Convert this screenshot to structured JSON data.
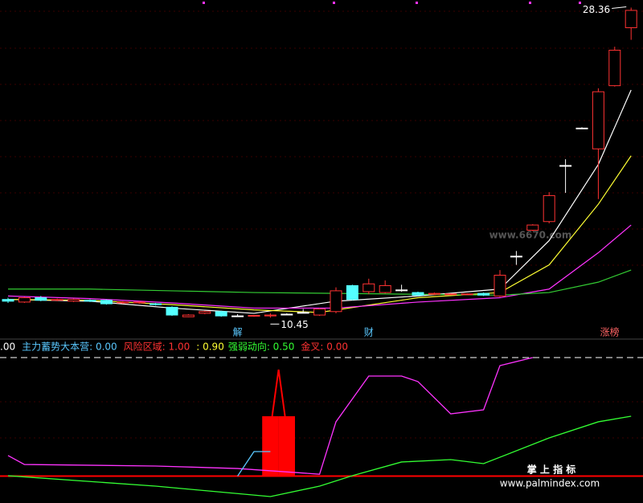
{
  "chart_data": {
    "type": "candlestick",
    "open": [
      11.5,
      11.35,
      11.6,
      11.45,
      11.4,
      11.45,
      11.45,
      11.3,
      11.3,
      11.25,
      11.05,
      10.5,
      10.7,
      10.8,
      10.55,
      10.55,
      10.55,
      10.65,
      10.75,
      10.6,
      10.8,
      12.3,
      11.95,
      11.9,
      12.05,
      11.9,
      11.8,
      11.8,
      11.8,
      11.85,
      11.7,
      14.0,
      15.5,
      16.0,
      19.24,
      21.4,
      20.2,
      23.85,
      27.2
    ],
    "close": [
      11.4,
      11.6,
      11.45,
      11.5,
      11.5,
      11.4,
      11.25,
      11.35,
      11.35,
      11.2,
      10.6,
      10.6,
      10.8,
      10.55,
      10.55,
      10.58,
      10.6,
      10.65,
      10.75,
      10.95,
      12.0,
      11.5,
      12.4,
      12.3,
      12.05,
      11.75,
      11.85,
      11.82,
      11.82,
      11.75,
      12.9,
      14.0,
      15.8,
      17.5,
      19.24,
      21.4,
      23.5,
      25.9,
      28.2
    ],
    "high": [
      11.6,
      11.65,
      11.7,
      11.55,
      11.55,
      11.5,
      11.5,
      11.4,
      11.4,
      11.3,
      11.1,
      10.65,
      10.85,
      10.85,
      10.65,
      10.6,
      10.7,
      10.7,
      10.95,
      11.0,
      12.2,
      12.35,
      12.7,
      12.6,
      12.35,
      11.95,
      11.9,
      11.85,
      11.85,
      11.9,
      13.2,
      14.3,
      15.85,
      17.7,
      19.6,
      21.45,
      23.7,
      26.1,
      28.36
    ],
    "low": [
      11.3,
      11.3,
      11.4,
      11.4,
      11.35,
      11.35,
      11.2,
      11.25,
      11.25,
      11.15,
      10.55,
      10.48,
      10.65,
      10.5,
      10.5,
      10.5,
      10.45,
      10.6,
      10.7,
      10.55,
      10.7,
      11.45,
      11.8,
      11.85,
      11.95,
      11.7,
      11.75,
      11.75,
      11.75,
      11.7,
      11.65,
      13.5,
      15.45,
      15.9,
      17.66,
      21.35,
      17.3,
      23.8,
      26.5
    ],
    "up_color": "#ff3232",
    "down_color": "#54ffff",
    "flat_color": "#ffffff",
    "ylim": [
      10.0,
      28.8
    ],
    "price_lines": [
      {
        "color": "#ffffff",
        "x": [
          0,
          5,
          10,
          15,
          20,
          25,
          30,
          33,
          36,
          38
        ],
        "values": [
          11.5,
          11.4,
          11.0,
          10.7,
          11.4,
          11.7,
          12.1,
          14.9,
          19.3,
          23.6
        ]
      },
      {
        "color": "#ffff33",
        "x": [
          0,
          5,
          10,
          15,
          19,
          25,
          30,
          33,
          36,
          38
        ],
        "values": [
          11.5,
          11.45,
          11.2,
          10.9,
          10.75,
          11.6,
          11.9,
          13.5,
          17.0,
          19.8
        ]
      },
      {
        "color": "#ff33ff",
        "x": [
          0,
          5,
          10,
          15,
          20,
          25,
          30,
          33,
          36,
          38
        ],
        "values": [
          11.7,
          11.55,
          11.3,
          11.0,
          11.0,
          11.35,
          11.6,
          12.1,
          14.2,
          15.8
        ]
      },
      {
        "color": "#33cc33",
        "x": [
          0,
          5,
          10,
          15,
          20,
          25,
          30,
          33,
          36,
          38
        ],
        "values": [
          12.1,
          12.1,
          12.0,
          11.9,
          11.85,
          11.8,
          11.75,
          11.9,
          12.5,
          13.2
        ]
      }
    ],
    "high_label": {
      "x": 38,
      "value": 28.36,
      "label": "28.36"
    },
    "low_label": {
      "x": 16,
      "value": 10.45,
      "label": "10.45"
    },
    "markers": [
      {
        "x": 14,
        "label": "解",
        "color": "#5ac8ff"
      },
      {
        "x": 22,
        "label": "财",
        "color": "#5ac8ff"
      },
      {
        "x": 36.7,
        "label": "涨榜",
        "color": "#ff6464"
      }
    ],
    "watermark": "www.6670.com",
    "indicator": {
      "legend": [
        {
          "text": ".00",
          "color": "#ffffff"
        },
        {
          "text": "主力蓄势大本营: 0.00",
          "color": "#5ac8ff"
        },
        {
          "text": "风险区域: 1.00",
          "color": "#ff3232"
        },
        {
          "text": ": 0.90",
          "color": "#ffff33"
        },
        {
          "text": "强弱动向: 0.50",
          "color": "#33ff33"
        },
        {
          "text": "金叉: 0.00",
          "color": "#ff3232"
        }
      ],
      "ylim": [
        -20,
        100
      ],
      "levels": [
        {
          "value": 0,
          "color": "#ff0000"
        },
        {
          "value": 100,
          "color": "#ffffff"
        }
      ],
      "lines": [
        {
          "color": "#ff33ff",
          "x": [
            0,
            1,
            9,
            14,
            19,
            20,
            22,
            24,
            25,
            27,
            29,
            30,
            32
          ],
          "values": [
            17.3,
            9.8,
            8.5,
            6.4,
            1.6,
            45.8,
            84.4,
            84.4,
            79.7,
            52.5,
            55.9,
            93.2,
            100
          ]
        },
        {
          "color": "#33ff33",
          "x": [
            0,
            9,
            16,
            19,
            21,
            24,
            27,
            29,
            33,
            36,
            38
          ],
          "values": [
            0.3,
            -8.5,
            -17.3,
            -8.5,
            0.3,
            11.9,
            13.9,
            10.5,
            32.2,
            45.8,
            50.5
          ]
        },
        {
          "color": "#5ac8ff",
          "x": [
            14,
            15,
            16
          ],
          "values": [
            0,
            20.7,
            20.7
          ]
        }
      ],
      "bars": {
        "color": "#ff0000",
        "x": [
          16,
          17
        ],
        "values": [
          50.5,
          50.5
        ]
      },
      "spike": {
        "x": 16.5,
        "value": 89.8
      }
    },
    "brand": "掌 上 指 标",
    "site": "www.palmindex.com"
  }
}
